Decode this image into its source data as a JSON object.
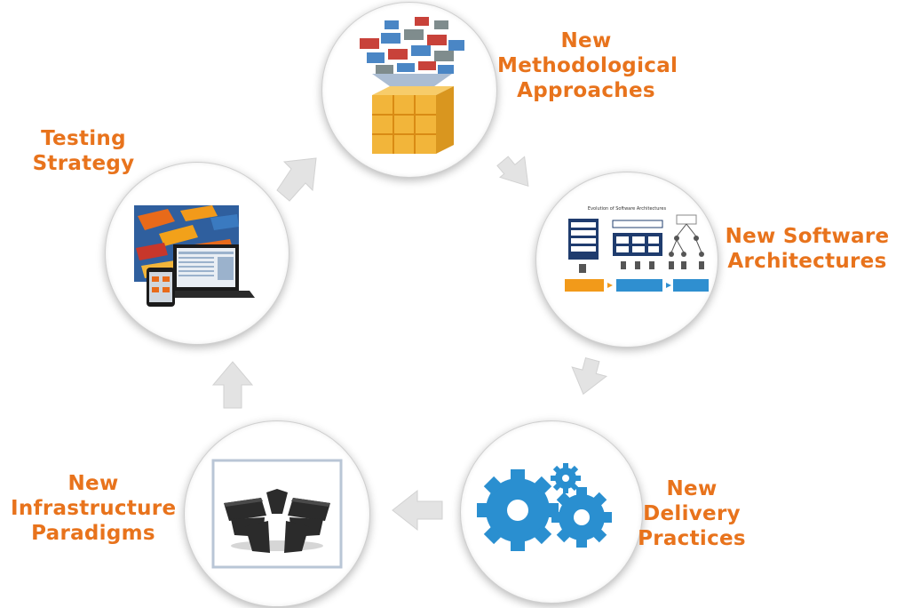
{
  "stages": [
    {
      "id": "methodological",
      "lines": [
        "New",
        "Methodological",
        "Approaches"
      ]
    },
    {
      "id": "software-arch",
      "lines": [
        "New Software",
        "Architectures"
      ]
    },
    {
      "id": "delivery",
      "lines": [
        "New",
        "Delivery",
        "Practices"
      ]
    },
    {
      "id": "infrastructure",
      "lines": [
        "New",
        "Infrastructure",
        "Paradigms"
      ]
    },
    {
      "id": "testing",
      "lines": [
        "Testing",
        "Strategy"
      ]
    }
  ],
  "arch_thumbnail_title": "Evolution of Software Architectures",
  "colors": {
    "label": "#e8731c",
    "arrow": "#e3e3e3",
    "gear": "#2a8fd0",
    "cube": "#f2b53a"
  },
  "icons": [
    "data-funnel-cube-icon",
    "architecture-diagram-icon",
    "gears-icon",
    "server-cluster-icon",
    "devices-icon"
  ]
}
